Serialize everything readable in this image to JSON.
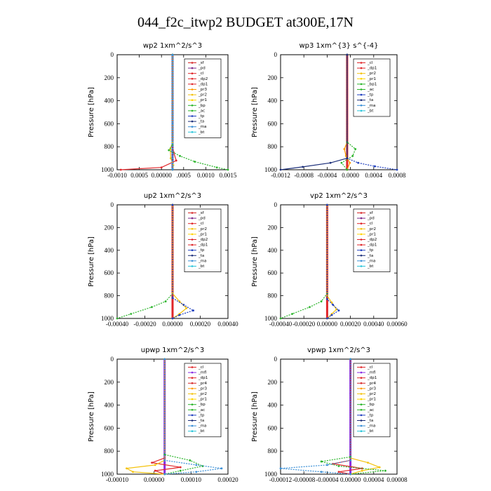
{
  "figure_title": "044_f2c_itwp2  BUDGET at300E,17N",
  "colors": {
    "sf": "#d62728",
    "pd": "#7b2a8c",
    "cl": "#e0262a",
    "dp2": "#e0262a",
    "dp1": "#e0262a",
    "pr3": "#ff9900",
    "pr2": "#f4c20d",
    "pr1": "#ffd400",
    "bp": "#2cb52c",
    "ac": "#2cb52c",
    "tp": "#1f3fbf",
    "ta": "#1c2f7a",
    "ma": "#3a8fd6",
    "bt": "#29c4d9",
    "mfl": "#8a2be2",
    "pr4": "#d62728"
  },
  "chart_data": [
    {
      "type": "line",
      "title": "wp2  1xm^2/s^3",
      "ylabel": "Pressure [hPa]",
      "xlim": [
        -0.0015,
        0.0015
      ],
      "ylim": [
        1000,
        0
      ],
      "xticks": [
        "-0.0010",
        "0.0005",
        "0.00000",
        ".0005",
        "0.0010",
        "0.0015"
      ],
      "yticks": [
        "0",
        "200",
        "400",
        "600",
        "800",
        "1000"
      ],
      "legend": [
        "_sf",
        "_pd",
        "_cl",
        "_dp2",
        "_dp1",
        "_pr3",
        "_pr2",
        "_pr1",
        "_bp",
        "_ac",
        "_tp",
        "_ta",
        "_ma",
        "_bt"
      ],
      "series": [
        {
          "name": "_sf",
          "color_key": "pd",
          "x": [
            0,
            0,
            0,
            0,
            0,
            0,
            0
          ],
          "y": [
            0,
            200,
            400,
            600,
            800,
            900,
            1000
          ]
        },
        {
          "name": "_cl",
          "color_key": "cl",
          "x": [
            0,
            0,
            0,
            3e-05,
            0.0001,
            -0.0003,
            -0.0014
          ],
          "y": [
            0,
            400,
            780,
            850,
            920,
            980,
            1000
          ]
        },
        {
          "name": "_pr2",
          "color_key": "pr2",
          "x": [
            0,
            0,
            -6e-05,
            -5e-05,
            2e-05,
            0
          ],
          "y": [
            0,
            760,
            820,
            900,
            960,
            1000
          ]
        },
        {
          "name": "_ac",
          "color_key": "ac",
          "x": [
            0,
            0,
            -0.0001,
            0.0002,
            0.0006,
            0.0012,
            0.0015
          ],
          "y": [
            0,
            780,
            830,
            880,
            930,
            980,
            1000
          ]
        },
        {
          "name": "_bt",
          "color_key": "ma",
          "x": [
            0,
            0,
            0,
            0
          ],
          "y": [
            0,
            600,
            900,
            1000
          ]
        }
      ]
    },
    {
      "type": "line",
      "title": "wp3  1xm^{3} s^{-4}",
      "ylabel": "Pressure [hPa]",
      "xlim": [
        -0.0012,
        0.0009
      ],
      "ylim": [
        1000,
        0
      ],
      "xticks": [
        "-0.0012",
        "-0.0008",
        "-0.0004",
        "0.0000",
        "0.0004",
        "0.0008"
      ],
      "yticks": [
        "0",
        "200",
        "400",
        "600",
        "800",
        "1000"
      ],
      "legend": [
        "_cl",
        "_dp1",
        "_pr2",
        "_pr1",
        "_bp1",
        "_ac",
        "_tp",
        "_ta",
        "_ma",
        "_bt"
      ],
      "series": [
        {
          "name": "_cl",
          "color_key": "cl",
          "x": [
            0,
            0,
            0,
            0,
            0
          ],
          "y": [
            0,
            300,
            600,
            900,
            1000
          ]
        },
        {
          "name": "_pr2",
          "color_key": "pr3",
          "x": [
            0,
            0,
            -5e-05,
            -2e-05,
            5e-05,
            0
          ],
          "y": [
            0,
            760,
            820,
            880,
            940,
            1000
          ]
        },
        {
          "name": "_ac",
          "color_key": "ac",
          "x": [
            0,
            0,
            0.00015,
            0.0001,
            -0.0001,
            0
          ],
          "y": [
            0,
            760,
            820,
            880,
            940,
            1000
          ]
        },
        {
          "name": "_tp",
          "color_key": "tp",
          "x": [
            0,
            0,
            0.0002,
            0.0005,
            0.0009
          ],
          "y": [
            0,
            900,
            940,
            970,
            1000
          ]
        },
        {
          "name": "_ta",
          "color_key": "ta",
          "x": [
            0,
            0,
            -0.0003,
            -0.0008,
            -0.0012
          ],
          "y": [
            0,
            900,
            940,
            975,
            1000
          ]
        }
      ]
    },
    {
      "type": "line",
      "title": "up2  1xm^2/s^3",
      "ylabel": "Pressure [hPa]",
      "xlim": [
        -0.0004,
        0.0004
      ],
      "ylim": [
        1000,
        0
      ],
      "xticks": [
        "-0.00040",
        "-0.00020",
        "0.00000",
        "0.00020",
        "0.00040"
      ],
      "yticks": [
        "0",
        "200",
        "400",
        "600",
        "800",
        "1000"
      ],
      "legend": [
        "_sf",
        "_pd",
        "_cl",
        "_pr2",
        "_pr1",
        "_dp2",
        "_dp1",
        "_tp",
        "_ta",
        "_ma",
        "_bt"
      ],
      "series": [
        {
          "name": "_sf",
          "color_key": "cl",
          "x": [
            0,
            0,
            0,
            0,
            0
          ],
          "y": [
            0,
            300,
            600,
            900,
            1000
          ]
        },
        {
          "name": "_dp2",
          "color_key": "ac",
          "x": [
            0,
            0,
            -5e-05,
            -0.00015,
            -0.0003,
            -0.0004
          ],
          "y": [
            0,
            780,
            850,
            900,
            960,
            1000
          ]
        },
        {
          "name": "_pr2",
          "color_key": "pr2",
          "x": [
            0,
            0,
            5e-05,
            0.0001,
            5e-05,
            0
          ],
          "y": [
            0,
            780,
            850,
            910,
            960,
            1000
          ]
        },
        {
          "name": "_tp",
          "color_key": "tp",
          "x": [
            0,
            0,
            8e-05,
            0.00015,
            5e-05,
            0
          ],
          "y": [
            0,
            820,
            880,
            930,
            970,
            1000
          ]
        }
      ]
    },
    {
      "type": "line",
      "title": "vp2  1xm^2/s^3",
      "ylabel": "Pressure [hPa]",
      "xlim": [
        -0.0004,
        0.0006
      ],
      "ylim": [
        1000,
        0
      ],
      "xticks": [
        "-0.00040",
        "-0.00020",
        "0.00000",
        "0.00020",
        "0.00040",
        "0.00060"
      ],
      "yticks": [
        "0",
        "200",
        "400",
        "600",
        "800",
        "1000"
      ],
      "legend": [
        "_sf",
        "_pd",
        "_cl",
        "_pr2",
        "_pr1",
        "_dp2",
        "_dp1",
        "_tp",
        "_ta",
        "_ma",
        "_bt"
      ],
      "series": [
        {
          "name": "_sf",
          "color_key": "cl",
          "x": [
            0,
            0,
            0,
            0,
            0
          ],
          "y": [
            0,
            300,
            600,
            900,
            1000
          ]
        },
        {
          "name": "_dp2",
          "color_key": "ac",
          "x": [
            0,
            0,
            -5e-05,
            -0.00015,
            -0.0003,
            -0.0004
          ],
          "y": [
            0,
            780,
            850,
            900,
            960,
            1000
          ]
        },
        {
          "name": "_pr2",
          "color_key": "pr2",
          "x": [
            0,
            0,
            4e-05,
            8e-05,
            4e-05,
            0
          ],
          "y": [
            0,
            800,
            860,
            920,
            960,
            1000
          ]
        },
        {
          "name": "_tp",
          "color_key": "tp",
          "x": [
            0,
            0,
            5e-05,
            0.0001,
            4e-05,
            0
          ],
          "y": [
            0,
            830,
            880,
            930,
            970,
            1000
          ]
        }
      ]
    },
    {
      "type": "line",
      "title": "upwp  1xm^2/s^3",
      "ylabel": "Pressure [hPa]",
      "xlim": [
        -0.00015,
        0.0002
      ],
      "ylim": [
        1000,
        0
      ],
      "xticks": [
        "-0.00010",
        "0.00000",
        "0.00010",
        "0.00020"
      ],
      "yticks": [
        "0",
        "200",
        "400",
        "600",
        "800",
        "1000"
      ],
      "legend": [
        "_cl",
        "_mfl",
        "_dp1",
        "_pr4",
        "_pr3",
        "_pr2",
        "_pr1",
        "_bp",
        "_ac",
        "_tp",
        "_ta",
        "_ma",
        "_bt"
      ],
      "series": [
        {
          "name": "_mfl",
          "color_key": "mfl",
          "x": [
            0,
            0,
            0,
            0,
            0
          ],
          "y": [
            0,
            300,
            600,
            900,
            1000
          ]
        },
        {
          "name": "_pr4",
          "color_key": "cl",
          "x": [
            0,
            0,
            -4e-05,
            5e-05,
            -3e-05,
            0
          ],
          "y": [
            0,
            860,
            900,
            940,
            970,
            1000
          ]
        },
        {
          "name": "_pr2",
          "color_key": "pr2",
          "x": [
            0,
            0,
            -3e-05,
            -0.00012,
            -0.0001,
            0
          ],
          "y": [
            0,
            880,
            920,
            950,
            980,
            1000
          ]
        },
        {
          "name": "_ac",
          "color_key": "ac",
          "x": [
            0,
            0,
            8e-05,
            0.00012,
            5e-05,
            0
          ],
          "y": [
            0,
            830,
            880,
            930,
            970,
            1000
          ]
        },
        {
          "name": "_tp",
          "color_key": "ma",
          "x": [
            0,
            0,
            0.0001,
            0.00018,
            0.0001,
            0
          ],
          "y": [
            0,
            880,
            920,
            950,
            980,
            1000
          ]
        }
      ]
    },
    {
      "type": "line",
      "title": "vpwp  1xm^2/s^3",
      "ylabel": "Pressure [hPa]",
      "xlim": [
        -0.00012,
        8e-05
      ],
      "ylim": [
        1000,
        0
      ],
      "xticks": [
        "-0.00012",
        "-0.00008",
        "-0.00004",
        "0.00000",
        "0.00004",
        "0.00008"
      ],
      "yticks": [
        "0",
        "200",
        "400",
        "600",
        "800",
        "1000"
      ],
      "legend": [
        "_cl",
        "_mfl",
        "_dp1",
        "_pr4",
        "_pr3",
        "_pr2",
        "_pr1",
        "_bp",
        "_ac",
        "_tp",
        "_ta",
        "_ma",
        "_bt"
      ],
      "series": [
        {
          "name": "_mfl",
          "color_key": "mfl",
          "x": [
            0,
            0,
            0,
            0,
            0
          ],
          "y": [
            0,
            300,
            600,
            900,
            1000
          ]
        },
        {
          "name": "_pr2",
          "color_key": "pr2",
          "x": [
            0,
            0,
            3e-05,
            5e-05,
            2e-05,
            0
          ],
          "y": [
            0,
            860,
            900,
            940,
            970,
            1000
          ]
        },
        {
          "name": "_pr4",
          "color_key": "cl",
          "x": [
            0,
            0,
            -3e-05,
            2e-05,
            -2e-05,
            0
          ],
          "y": [
            0,
            880,
            910,
            950,
            980,
            1000
          ]
        },
        {
          "name": "_ac",
          "color_key": "ac",
          "x": [
            0,
            0,
            -5e-05,
            -2e-05,
            6e-05,
            0
          ],
          "y": [
            0,
            850,
            890,
            930,
            970,
            1000
          ]
        },
        {
          "name": "_tp",
          "color_key": "ma",
          "x": [
            0,
            0,
            -4e-05,
            -0.00012,
            -5e-05,
            0
          ],
          "y": [
            0,
            880,
            920,
            950,
            980,
            1000
          ]
        }
      ]
    }
  ]
}
